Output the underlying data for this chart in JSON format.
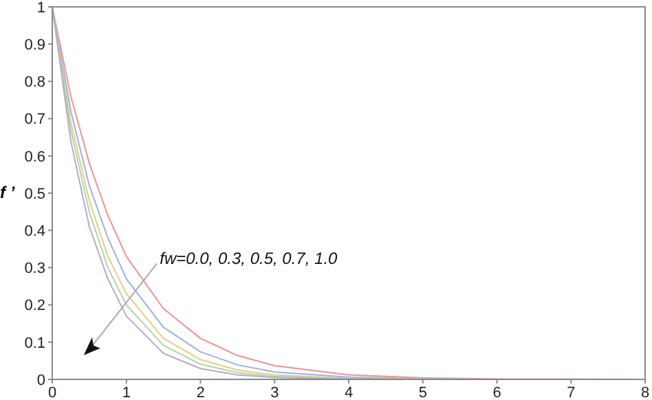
{
  "chart_data": {
    "type": "line",
    "ylabel": "f ’",
    "x": [
      0,
      0.25,
      0.5,
      0.75,
      1,
      1.5,
      2,
      2.5,
      3,
      4,
      5,
      6,
      8
    ],
    "series": [
      {
        "color": "#f09090",
        "values": [
          1,
          0.76,
          0.58,
          0.44,
          0.33,
          0.19,
          0.11,
          0.064,
          0.037,
          0.012,
          0.004,
          0.001,
          0
        ]
      },
      {
        "color": "#98b0e8",
        "values": [
          1,
          0.72,
          0.52,
          0.38,
          0.27,
          0.14,
          0.074,
          0.039,
          0.02,
          0.006,
          0.002,
          0,
          0
        ]
      },
      {
        "color": "#e8cc80",
        "values": [
          1,
          0.69,
          0.48,
          0.33,
          0.23,
          0.11,
          0.053,
          0.025,
          0.012,
          0.003,
          0.001,
          0,
          0
        ]
      },
      {
        "color": "#a8d8a8",
        "values": [
          1,
          0.67,
          0.45,
          0.3,
          0.2,
          0.091,
          0.041,
          0.018,
          0.008,
          0.002,
          0,
          0,
          0
        ]
      },
      {
        "color": "#b8a8c8",
        "values": [
          1,
          0.64,
          0.41,
          0.27,
          0.17,
          0.07,
          0.029,
          0.012,
          0.005,
          0.001,
          0,
          0,
          0
        ]
      }
    ],
    "annotations": [
      "fw=0.0, 0.3, 0.5, 0.7, 1.0"
    ],
    "xlim": [
      0,
      8
    ],
    "xticks": [
      0,
      1,
      2,
      3,
      4,
      5,
      6,
      7,
      8
    ],
    "ylim": [
      0,
      1
    ],
    "yticks": [
      0,
      0.1,
      0.2,
      0.3,
      0.4,
      0.5,
      0.6,
      0.7,
      0.8,
      0.9,
      1
    ],
    "marker": "none",
    "line_style": "solid"
  }
}
